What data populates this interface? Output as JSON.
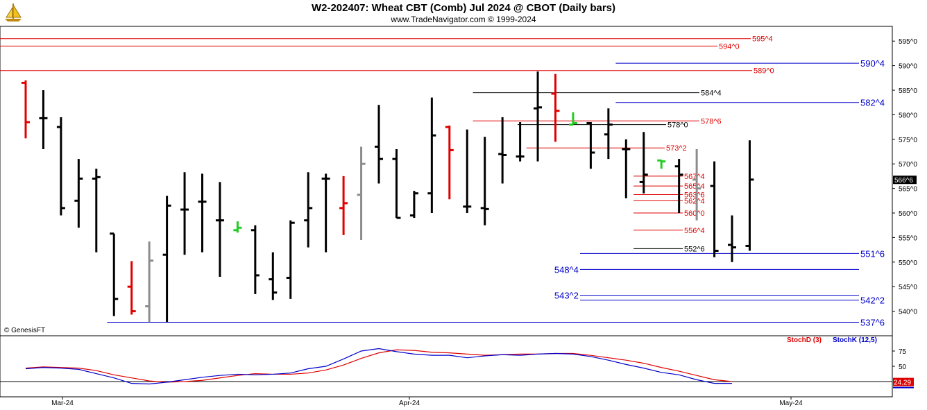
{
  "header": {
    "title": "W2-202407:  Wheat CBT (Comb) Jul 2024 @ CBOT  (Daily bars)",
    "subtitle": "www.TradeNavigator.com © 1999-2024"
  },
  "copyright": "© GenesisFT",
  "colors": {
    "up_bar": "#000000",
    "red_bar": "#e00000",
    "gray_bar": "#8c8c8c",
    "green_bar": "#22cc22",
    "red_level": "#e00000",
    "blue_level": "#0000cc",
    "black_level": "#000000",
    "stoch_d": "#e00000",
    "stoch_k": "#0000cc"
  },
  "chart_data": [
    {
      "type": "ohlc",
      "title": "W2-202407:  Wheat CBT (Comb) Jul 2024 @ CBOT  (Daily bars)",
      "ylim": [
        535,
        598
      ],
      "y_ticks": [
        "595^0",
        "590^0",
        "585^0",
        "580^0",
        "575^0",
        "570^0",
        "565^0",
        "560^0",
        "555^0",
        "550^0",
        "545^0",
        "540^0"
      ],
      "y_tick_values": [
        595,
        590,
        585,
        580,
        575,
        570,
        565,
        560,
        555,
        550,
        545,
        540
      ],
      "x_labels": [
        "Mar-24",
        "Apr-24",
        "May-24"
      ],
      "last_price_label": "566^6",
      "last_price": 566.75,
      "bars": [
        {
          "c": "red",
          "o": 586.5,
          "h": 587,
          "l": 575.2,
          "cl": 578.5
        },
        {
          "c": "black",
          "o": 579.3,
          "h": 585,
          "l": 573,
          "cl": 579.3
        },
        {
          "c": "black",
          "o": 577.5,
          "h": 579.5,
          "l": 559.5,
          "cl": 561
        },
        {
          "c": "black",
          "o": 562.5,
          "h": 571,
          "l": 557,
          "cl": 567
        },
        {
          "c": "black",
          "o": 567,
          "h": 569,
          "l": 552,
          "cl": 567.3
        },
        {
          "c": "black",
          "o": 555.8,
          "h": 555.8,
          "l": 539,
          "cl": 542.5
        },
        {
          "c": "red",
          "o": 545,
          "h": 550.2,
          "l": 539.3,
          "cl": 540
        },
        {
          "c": "gray",
          "o": 541,
          "h": 554.2,
          "l": 537.8,
          "cl": 550.3
        },
        {
          "c": "black",
          "o": 551.5,
          "h": 563.5,
          "l": 537.8,
          "cl": 561.5
        },
        {
          "c": "black",
          "o": 560.7,
          "h": 568.3,
          "l": 551.5,
          "cl": 560.7
        },
        {
          "c": "black",
          "o": 562.3,
          "h": 568,
          "l": 552,
          "cl": 562.3
        },
        {
          "c": "black",
          "o": 558.5,
          "h": 566.3,
          "l": 547,
          "cl": 558.5
        },
        {
          "c": "green",
          "o": 556.5,
          "h": 558.3,
          "l": 556,
          "cl": 557
        },
        {
          "c": "black",
          "o": 556.5,
          "h": 557.5,
          "l": 543.5,
          "cl": 547.3
        },
        {
          "c": "black",
          "o": 546.5,
          "h": 552,
          "l": 542.3,
          "cl": 543.8
        },
        {
          "c": "black",
          "o": 546.8,
          "h": 558.5,
          "l": 542.5,
          "cl": 558
        },
        {
          "c": "black",
          "o": 558.5,
          "h": 568.3,
          "l": 553,
          "cl": 561
        },
        {
          "c": "black",
          "o": 567,
          "h": 568,
          "l": 552,
          "cl": 567
        },
        {
          "c": "red",
          "o": 561,
          "h": 567.5,
          "l": 555.5,
          "cl": 562
        },
        {
          "c": "gray",
          "o": 563.7,
          "h": 573.5,
          "l": 554.5,
          "cl": 570
        },
        {
          "c": "black",
          "o": 573.5,
          "h": 582,
          "l": 566,
          "cl": 571
        },
        {
          "c": "black",
          "o": 571,
          "h": 573,
          "l": 559,
          "cl": 559
        },
        {
          "c": "black",
          "o": 559.5,
          "h": 564.5,
          "l": 559,
          "cl": 564
        },
        {
          "c": "black",
          "o": 564,
          "h": 583.5,
          "l": 560,
          "cl": 575.8
        },
        {
          "c": "red",
          "o": 577.5,
          "h": 577.8,
          "l": 562.8,
          "cl": 572.8
        },
        {
          "c": "black",
          "o": 561.3,
          "h": 577,
          "l": 560,
          "cl": 561.3
        },
        {
          "c": "black",
          "o": 561,
          "h": 575.5,
          "l": 557.5,
          "cl": 560.8
        },
        {
          "c": "black",
          "o": 572,
          "h": 579.5,
          "l": 566,
          "cl": 571.8
        },
        {
          "c": "black",
          "o": 571.5,
          "h": 578.5,
          "l": 570.5,
          "cl": 571.5
        },
        {
          "c": "black",
          "o": 581.3,
          "h": 588.8,
          "l": 570.5,
          "cl": 581.5
        },
        {
          "c": "red",
          "o": 584.3,
          "h": 588.3,
          "l": 574.5,
          "cl": 580.8
        },
        {
          "c": "green",
          "o": 578,
          "h": 580.5,
          "l": 578,
          "cl": 578.3
        },
        {
          "c": "black",
          "o": 578.3,
          "h": 578.5,
          "l": 569,
          "cl": 572.3
        },
        {
          "c": "black",
          "o": 576,
          "h": 581.3,
          "l": 571,
          "cl": 578
        },
        {
          "c": "black",
          "o": 573,
          "h": 575,
          "l": 563,
          "cl": 573
        },
        {
          "c": "black",
          "o": 566.3,
          "h": 576.5,
          "l": 564,
          "cl": 567.8
        },
        {
          "c": "green",
          "o": 570.7,
          "h": 570.8,
          "l": 569,
          "cl": 570.5
        },
        {
          "c": "black",
          "o": 569.5,
          "h": 571,
          "l": 560,
          "cl": 567.8
        },
        {
          "c": "gray",
          "o": 566.8,
          "h": 573,
          "l": 558.5,
          "cl": 565
        },
        {
          "c": "black",
          "o": 565.5,
          "h": 570.5,
          "l": 551,
          "cl": 552.3
        },
        {
          "c": "black",
          "o": 553.5,
          "h": 559.5,
          "l": 550,
          "cl": 553
        },
        {
          "c": "black",
          "o": 553.3,
          "h": 574.8,
          "l": 552.3,
          "cl": 566.8
        }
      ],
      "levels": [
        {
          "label": "595^4",
          "value": 595.5,
          "color": "red",
          "x_from": 0.0,
          "label_pos": "mid"
        },
        {
          "label": "594^0",
          "value": 594,
          "color": "red",
          "x_from": 0.0,
          "label_pos": "mid"
        },
        {
          "label": "589^0",
          "value": 589,
          "color": "red",
          "x_from": 0.0,
          "label_pos": "mid"
        },
        {
          "label": "590^4",
          "value": 590.5,
          "color": "blue",
          "x_from": 0.69,
          "label_pos": "right"
        },
        {
          "label": "584^4",
          "value": 584.5,
          "color": "black",
          "x_from": 0.53,
          "label_pos": "mid"
        },
        {
          "label": "582^4",
          "value": 582.5,
          "color": "blue",
          "x_from": 0.69,
          "label_pos": "right"
        },
        {
          "label": "578^6",
          "value": 578.75,
          "color": "red",
          "x_from": 0.53,
          "label_pos": "mid"
        },
        {
          "label": "578^0",
          "value": 578,
          "color": "black",
          "x_from": 0.58,
          "label_pos": "mid"
        },
        {
          "label": "573^2",
          "value": 573.25,
          "color": "red",
          "x_from": 0.59,
          "label_pos": "mid"
        },
        {
          "label": "567^4",
          "value": 567.5,
          "color": "red",
          "x_from": 0.71,
          "label_pos": "mid"
        },
        {
          "label": "565^4",
          "value": 565.5,
          "color": "red",
          "x_from": 0.71,
          "label_pos": "mid"
        },
        {
          "label": "563^6",
          "value": 563.75,
          "color": "red",
          "x_from": 0.71,
          "label_pos": "mid"
        },
        {
          "label": "562^4",
          "value": 562.5,
          "color": "red",
          "x_from": 0.71,
          "label_pos": "mid"
        },
        {
          "label": "560^0",
          "value": 560,
          "color": "red",
          "x_from": 0.71,
          "label_pos": "mid"
        },
        {
          "label": "556^4",
          "value": 556.5,
          "color": "red",
          "x_from": 0.71,
          "label_pos": "mid"
        },
        {
          "label": "552^6",
          "value": 552.75,
          "color": "black",
          "x_from": 0.71,
          "label_pos": "mid"
        },
        {
          "label": "551^6",
          "value": 551.75,
          "color": "blue",
          "x_from": 0.65,
          "label_pos": "right"
        },
        {
          "label": "548^4",
          "value": 548.5,
          "color": "blue",
          "x_from": 0.65,
          "label_pos": "left"
        },
        {
          "label": "543^2",
          "value": 543.25,
          "color": "blue",
          "x_from": 0.65,
          "label_pos": "left"
        },
        {
          "label": "542^2",
          "value": 542.25,
          "color": "blue",
          "x_from": 0.65,
          "label_pos": "right"
        },
        {
          "label": "537^6",
          "value": 537.75,
          "color": "blue",
          "x_from": 0.12,
          "label_pos": "right"
        }
      ]
    },
    {
      "type": "line",
      "ylim": [
        0,
        100
      ],
      "y_ticks": [
        "75",
        "50"
      ],
      "y_tick_values": [
        75,
        50
      ],
      "hline": 25,
      "last_value_label": "24.29",
      "series": [
        {
          "name": "StochD (3)",
          "values": [
            47,
            49,
            48,
            47,
            43,
            36,
            31,
            26,
            24,
            25,
            27,
            31,
            35,
            38,
            37,
            37,
            39,
            44,
            52,
            63,
            72,
            77,
            76,
            73,
            72,
            70,
            68,
            69,
            70,
            70,
            71,
            71,
            68,
            64,
            60,
            55,
            48,
            42,
            35,
            28,
            25
          ]
        },
        {
          "name": "StochK (12,5)",
          "values": [
            46,
            48,
            47,
            45,
            38,
            31,
            22,
            21,
            24,
            28,
            32,
            35,
            37,
            36,
            37,
            39,
            46,
            50,
            62,
            75,
            79,
            74,
            70,
            68,
            68,
            64,
            67,
            69,
            68,
            70,
            71,
            70,
            66,
            60,
            53,
            47,
            40,
            36,
            28,
            22,
            22
          ]
        }
      ]
    }
  ]
}
